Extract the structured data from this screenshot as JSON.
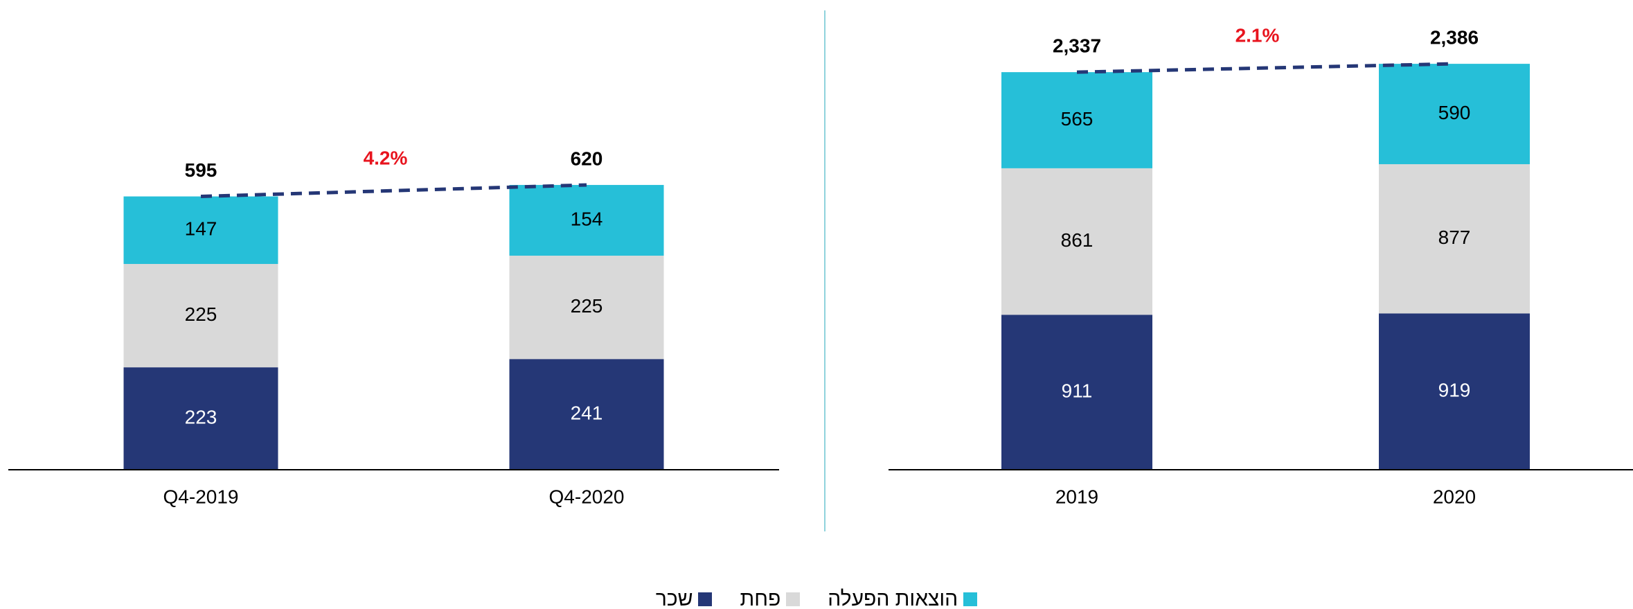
{
  "chart_data": [
    {
      "type": "bar",
      "stacked": true,
      "categories": [
        "Q4-2019",
        "Q4-2020"
      ],
      "series": [
        {
          "name": "שכר",
          "color": "#253776",
          "values": [
            223,
            241
          ]
        },
        {
          "name": "פחת",
          "color": "#d9d9d9",
          "values": [
            225,
            225
          ]
        },
        {
          "name": "הוצאות הפעלה",
          "color": "#26bfd8",
          "values": [
            147,
            154
          ]
        }
      ],
      "totals": {
        "values": [
          595,
          620
        ]
      },
      "annotation": "4.2%",
      "ylim": [
        0,
        1000
      ]
    },
    {
      "type": "bar",
      "stacked": true,
      "categories": [
        "2019",
        "2020"
      ],
      "series": [
        {
          "name": "שכר",
          "color": "#253776",
          "values": [
            911,
            919
          ]
        },
        {
          "name": "פחת",
          "color": "#d9d9d9",
          "values": [
            861,
            877
          ]
        },
        {
          "name": "הוצאות הפעלה",
          "color": "#26bfd8",
          "values": [
            565,
            590
          ]
        }
      ],
      "totals": {
        "values": [
          2337,
          2386
        ],
        "value_labels": [
          "2,337",
          "2,386"
        ]
      },
      "annotation": "2.1%",
      "ylim": [
        0,
        2700
      ]
    }
  ]
}
